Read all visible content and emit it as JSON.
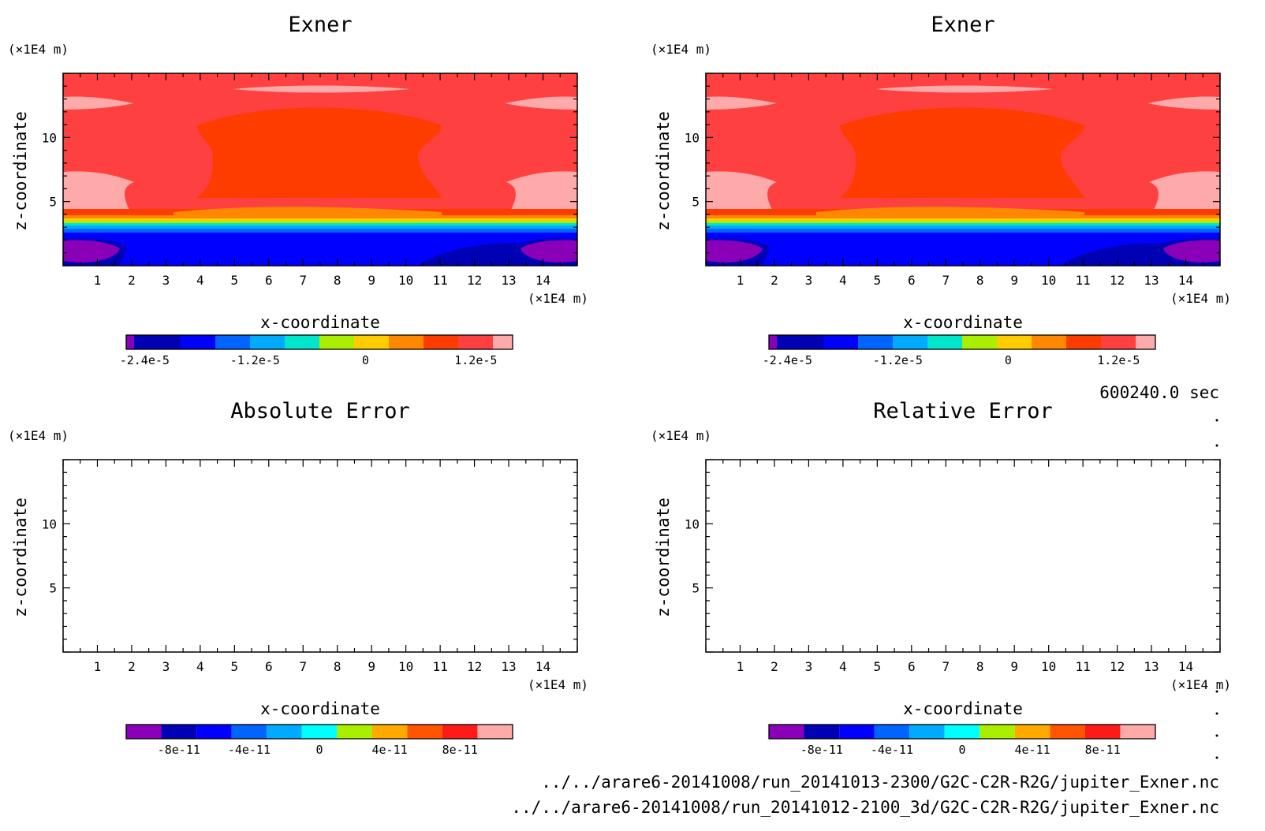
{
  "time_label": "600240.0 sec",
  "files": [
    "../../arare6-20141008/run_20141013-2300/G2C-C2R-R2G/jupiter_Exner.nc",
    "../../arare6-20141008/run_20141012-2100_3d/G2C-C2R-R2G/jupiter_Exner.nc"
  ],
  "chart_data": [
    {
      "type": "heatmap",
      "title": "Exner",
      "xlabel": "x-coordinate",
      "ylabel": "z-coordinate",
      "x_unit": "(×1E4 m)",
      "y_unit": "(×1E4 m)",
      "xlim": [
        0,
        15
      ],
      "ylim": [
        0,
        15
      ],
      "x_ticks": [
        "1",
        "2",
        "3",
        "4",
        "5",
        "6",
        "7",
        "8",
        "9",
        "10",
        "11",
        "12",
        "13",
        "14"
      ],
      "y_ticks": [
        "5",
        "10"
      ],
      "colorbar": {
        "colors": [
          "#8a00b8",
          "#0000b4",
          "#0000ff",
          "#0064ff",
          "#00aaff",
          "#00e6cc",
          "#aaee00",
          "#ffcc00",
          "#ff8800",
          "#ff3c00",
          "#ff4040",
          "#ffaaaa"
        ],
        "range": [
          -2.6e-05,
          1.6e-05
        ],
        "tick_labels": [
          "-2.4e-5",
          "-1.2e-5",
          "0",
          "1.2e-5"
        ],
        "tick_values": [
          -2.4e-05,
          -1.2e-05,
          0,
          1.2e-05
        ]
      },
      "fill": "exner"
    },
    {
      "type": "heatmap",
      "title": "Exner",
      "xlabel": "x-coordinate",
      "ylabel": "z-coordinate",
      "x_unit": "(×1E4 m)",
      "y_unit": "(×1E4 m)",
      "xlim": [
        0,
        15
      ],
      "ylim": [
        0,
        15
      ],
      "x_ticks": [
        "1",
        "2",
        "3",
        "4",
        "5",
        "6",
        "7",
        "8",
        "9",
        "10",
        "11",
        "12",
        "13",
        "14"
      ],
      "y_ticks": [
        "5",
        "10"
      ],
      "colorbar": {
        "colors": [
          "#8a00b8",
          "#0000b4",
          "#0000ff",
          "#0064ff",
          "#00aaff",
          "#00e6cc",
          "#aaee00",
          "#ffcc00",
          "#ff8800",
          "#ff3c00",
          "#ff4040",
          "#ffaaaa"
        ],
        "range": [
          -2.6e-05,
          1.6e-05
        ],
        "tick_labels": [
          "-2.4e-5",
          "-1.2e-5",
          "0",
          "1.2e-5"
        ],
        "tick_values": [
          -2.4e-05,
          -1.2e-05,
          0,
          1.2e-05
        ]
      },
      "fill": "exner"
    },
    {
      "type": "heatmap",
      "title": "Absolute Error",
      "xlabel": "x-coordinate",
      "ylabel": "z-coordinate",
      "x_unit": "(×1E4 m)",
      "y_unit": "(×1E4 m)",
      "xlim": [
        0,
        15
      ],
      "ylim": [
        0,
        15
      ],
      "x_ticks": [
        "1",
        "2",
        "3",
        "4",
        "5",
        "6",
        "7",
        "8",
        "9",
        "10",
        "11",
        "12",
        "13",
        "14"
      ],
      "y_ticks": [
        "5",
        "10"
      ],
      "colorbar": {
        "colors": [
          "#8a00b8",
          "#0000b4",
          "#0000ff",
          "#0064ff",
          "#00aaff",
          "#00ffff",
          "#aaee00",
          "#ffaa00",
          "#ff5500",
          "#ff1a1a",
          "#ffaaaa"
        ],
        "range": [
          -1.1e-10,
          1.1e-10
        ],
        "tick_labels": [
          "-8e-11",
          "-4e-11",
          "0",
          "4e-11",
          "8e-11"
        ],
        "tick_values": [
          -8e-11,
          -4e-11,
          0,
          4e-11,
          8e-11
        ]
      },
      "fill": "empty"
    },
    {
      "type": "heatmap",
      "title": "Relative Error",
      "xlabel": "x-coordinate",
      "ylabel": "z-coordinate",
      "x_unit": "(×1E4 m)",
      "y_unit": "(×1E4 m)",
      "xlim": [
        0,
        15
      ],
      "ylim": [
        0,
        15
      ],
      "x_ticks": [
        "1",
        "2",
        "3",
        "4",
        "5",
        "6",
        "7",
        "8",
        "9",
        "10",
        "11",
        "12",
        "13",
        "14"
      ],
      "y_ticks": [
        "5",
        "10"
      ],
      "colorbar": {
        "colors": [
          "#8a00b8",
          "#0000b4",
          "#0000ff",
          "#0064ff",
          "#00aaff",
          "#00ffff",
          "#aaee00",
          "#ffaa00",
          "#ff5500",
          "#ff1a1a",
          "#ffaaaa"
        ],
        "range": [
          -1.1e-10,
          1.1e-10
        ],
        "tick_labels": [
          "-8e-11",
          "-4e-11",
          "0",
          "4e-11",
          "8e-11"
        ],
        "tick_values": [
          -8e-11,
          -4e-11,
          0,
          4e-11,
          8e-11
        ]
      },
      "fill": "empty"
    }
  ]
}
